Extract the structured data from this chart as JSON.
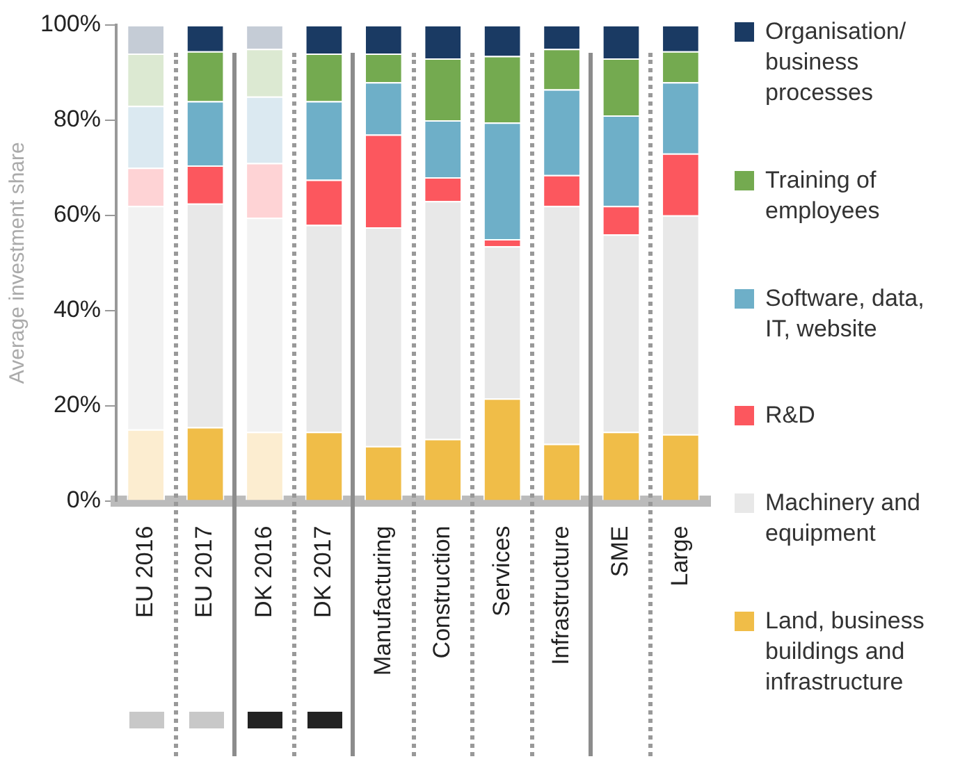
{
  "chart_data": {
    "type": "bar",
    "stacked": true,
    "ylabel": "Average investment share",
    "categories": [
      "EU 2016",
      "EU 2017",
      "DK 2016",
      "DK 2017",
      "Manufacturing",
      "Construction",
      "Services",
      "Infrastructure",
      "SME",
      "Large"
    ],
    "ylim": [
      0,
      100
    ],
    "yticks": [
      {
        "value": 0,
        "label": "0%"
      },
      {
        "value": 20,
        "label": "20%"
      },
      {
        "value": 40,
        "label": "40%"
      },
      {
        "value": 60,
        "label": "60%"
      },
      {
        "value": 80,
        "label": "80%"
      },
      {
        "value": 100,
        "label": "100%"
      }
    ],
    "grid": false,
    "legend": "right",
    "series": [
      {
        "name": "Land, business buildings and infrastructure",
        "color": "#f0bd48",
        "colors": [
          "#fcedd0",
          "#f0bd48",
          "#fcedd0",
          "#f0bd48",
          "#f0bd48",
          "#f0bd48",
          "#f0bd48",
          "#f0bd48",
          "#f0bd48",
          "#f0bd48"
        ],
        "values": [
          15,
          15.5,
          14.5,
          14.5,
          11.5,
          13,
          21.5,
          12,
          14.5,
          14
        ]
      },
      {
        "name": "Machinery and equipment",
        "color": "#e8e8e8",
        "colors": [
          "#f2f2f2",
          "#e8e8e8",
          "#f2f2f2",
          "#e8e8e8",
          "#e8e8e8",
          "#e8e8e8",
          "#e8e8e8",
          "#e8e8e8",
          "#e8e8e8",
          "#e8e8e8"
        ],
        "values": [
          47,
          47,
          45,
          43.5,
          46,
          50,
          32,
          50,
          41.5,
          46
        ]
      },
      {
        "name": "R&D",
        "color": "#fc575e",
        "colors": [
          "#fed3d5",
          "#fc575e",
          "#fed3d5",
          "#fc575e",
          "#fc575e",
          "#fc575e",
          "#fc575e",
          "#fc575e",
          "#fc575e",
          "#fc575e"
        ],
        "values": [
          8,
          8,
          11.5,
          9.5,
          19.5,
          5,
          1.5,
          6.5,
          6,
          13
        ]
      },
      {
        "name": "Software, data, IT, website",
        "color": "#6eafc8",
        "colors": [
          "#dbe9f1",
          "#6eafc8",
          "#dbe9f1",
          "#6eafc8",
          "#6eafc8",
          "#6eafc8",
          "#6eafc8",
          "#6eafc8",
          "#6eafc8",
          "#6eafc8"
        ],
        "values": [
          13,
          13.5,
          14,
          16.5,
          11,
          12,
          24.5,
          18,
          19,
          15
        ]
      },
      {
        "name": "Training of employees",
        "color": "#74aa50",
        "colors": [
          "#dce9d2",
          "#74aa50",
          "#dce9d2",
          "#74aa50",
          "#74aa50",
          "#74aa50",
          "#74aa50",
          "#74aa50",
          "#74aa50",
          "#74aa50"
        ],
        "values": [
          11,
          10.5,
          10,
          10,
          6,
          13,
          14,
          8.5,
          12,
          6.5
        ]
      },
      {
        "name": "Organisation/ business processes",
        "color": "#1a3a63",
        "colors": [
          "#c5ccd6",
          "#1a3a63",
          "#c5ccd6",
          "#1a3a63",
          "#1a3a63",
          "#1a3a63",
          "#1a3a63",
          "#1a3a63",
          "#1a3a63",
          "#1a3a63"
        ],
        "values": [
          6,
          5.5,
          5,
          6,
          6,
          7,
          6.5,
          5,
          7,
          5.5
        ]
      }
    ]
  }
}
